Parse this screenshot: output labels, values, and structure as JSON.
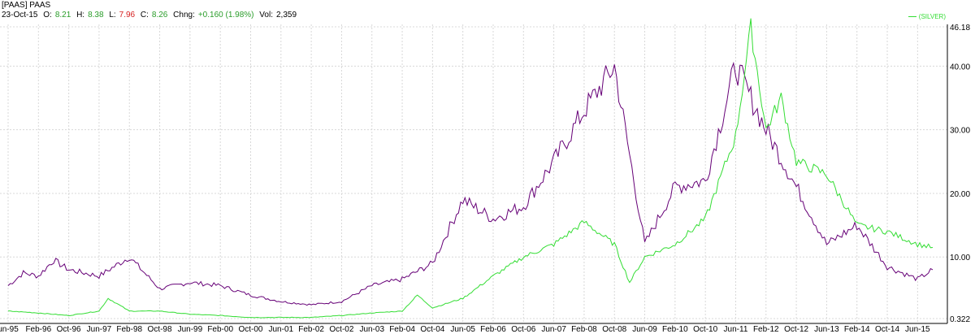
{
  "header": {
    "title": "[PAAS] PAAS",
    "date": "23-Oct-15",
    "open_label": "O:",
    "open": "8.21",
    "high_label": "H:",
    "high": "8.38",
    "low_label": "L:",
    "low": "7.96",
    "close_label": "C:",
    "close": "8.26",
    "change_label": "Chng:",
    "change": "+0.160 (1.98%)",
    "volume_label": "Vol:",
    "volume": "2,359"
  },
  "colors": {
    "paas": "#660077",
    "silver": "#33dd33",
    "grid": "#d8d8d8",
    "up": "#2a9d2a",
    "down": "#d62020"
  },
  "chart_data": {
    "type": "line",
    "title": "",
    "legend": {
      "entries": [
        "(SILVER)"
      ],
      "placement": "top-right"
    },
    "grid": true,
    "yticks": [
      "46.18",
      "40.00",
      "30.00",
      "20.00",
      "10.00",
      "0.322"
    ],
    "ylim": [
      0.322,
      46.18
    ],
    "xticks": [
      "un-95",
      "Feb-96",
      "Oct-96",
      "Jun-97",
      "Feb-98",
      "Oct-98",
      "Jun-99",
      "Feb-00",
      "Oct-00",
      "Jun-01",
      "Feb-02",
      "Oct-02",
      "Jun-03",
      "Feb-04",
      "Oct-04",
      "Jun-05",
      "Feb-06",
      "Oct-06",
      "Jun-07",
      "Feb-08",
      "Oct-08",
      "Jun-09",
      "Feb-10",
      "Oct-10",
      "Jun-11",
      "Feb-12",
      "Oct-12",
      "Jun-13",
      "Feb-14",
      "Oct-14",
      "Jun-15"
    ],
    "series": [
      {
        "name": "PAAS",
        "color": "#660077",
        "x": [
          0,
          0.5,
          1,
          1.5,
          2,
          3,
          4,
          5,
          6,
          7,
          8,
          9,
          10,
          11,
          12,
          13,
          14,
          15,
          16,
          17,
          18,
          19,
          20,
          21,
          22,
          23,
          24,
          25,
          26,
          27,
          28,
          29,
          30,
          30.5
        ],
        "values": [
          5.5,
          7.5,
          7,
          9.5,
          8,
          7,
          10,
          5,
          6,
          5.5,
          4,
          3,
          2.5,
          3,
          5.5,
          6.5,
          9,
          19,
          16,
          18,
          25,
          33,
          40,
          12,
          21,
          22,
          40,
          30,
          21,
          12,
          15,
          8.5,
          6.5,
          8
        ]
      },
      {
        "name": "(SILVER)",
        "color": "#33dd33",
        "x": [
          0,
          1,
          2,
          3,
          3.3,
          4,
          5,
          6,
          7,
          8,
          9,
          10,
          11,
          12,
          13,
          13.5,
          14,
          15,
          16,
          17,
          18,
          19,
          20,
          20.5,
          21,
          22,
          23,
          24,
          24.5,
          25,
          25.5,
          26,
          27,
          28,
          29,
          30,
          30.5
        ],
        "values": [
          1.5,
          1.2,
          0.8,
          1.5,
          3.5,
          1.5,
          1.5,
          1,
          0.8,
          0.5,
          0.5,
          0.5,
          0.8,
          1.2,
          1.5,
          4,
          2,
          3.5,
          7,
          10,
          12,
          15.5,
          12,
          6,
          10,
          12,
          16,
          29,
          46,
          30,
          35,
          25,
          23,
          15,
          14,
          12,
          11.5
        ]
      }
    ]
  }
}
